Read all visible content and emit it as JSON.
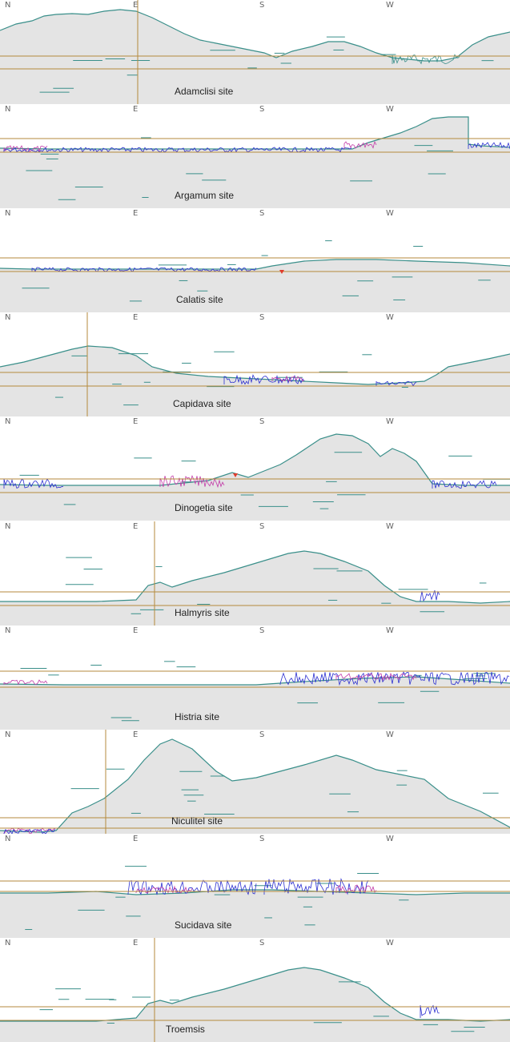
{
  "directions": [
    "N",
    "E",
    "S",
    "W"
  ],
  "colors": {
    "terrain_fill": "#e4e4e4",
    "horizon_outline": "#3a8f8a",
    "reference_line": "#b58a3c",
    "vegetation_blue": "#2c2fd0",
    "vegetation_magenta": "#c23aa8",
    "marker_red": "#e03b2c"
  },
  "panels": [
    {
      "label": "Adamclisi site",
      "id": "adamclisi"
    },
    {
      "label": "Argamum site",
      "id": "argamum"
    },
    {
      "label": "Calatis site",
      "id": "calatis"
    },
    {
      "label": "Capidava site",
      "id": "capidava"
    },
    {
      "label": "Dinogetia site",
      "id": "dinogetia"
    },
    {
      "label": "Halmyris site",
      "id": "halmyris"
    },
    {
      "label": "Histria site",
      "id": "histria"
    },
    {
      "label": "Niculitel site",
      "id": "niculitel"
    },
    {
      "label": "Sucidava site",
      "id": "sucidava"
    },
    {
      "label": "Troemsis",
      "id": "troemsis"
    }
  ]
}
